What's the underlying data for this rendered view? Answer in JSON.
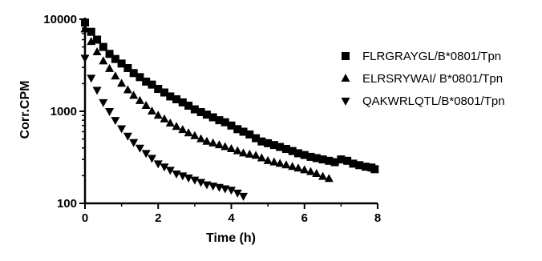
{
  "chart_data": {
    "type": "scatter",
    "xlabel": "Time (h)",
    "ylabel": "Corr.CPM",
    "xlim": [
      0,
      8
    ],
    "ylim": [
      100,
      10000
    ],
    "yscale": "log",
    "x_ticks": [
      "0",
      "2",
      "4",
      "6",
      "8"
    ],
    "y_ticks": [
      "100",
      "1000",
      "10000"
    ],
    "grid": false,
    "legend_position": "right",
    "series": [
      {
        "name": "FLRGRAYGL/B*0801/Tpn",
        "marker": "square",
        "color": "#000000",
        "x": [
          0,
          0.17,
          0.33,
          0.5,
          0.67,
          0.83,
          1.0,
          1.17,
          1.33,
          1.5,
          1.67,
          1.83,
          2.0,
          2.17,
          2.33,
          2.5,
          2.67,
          2.83,
          3.0,
          3.17,
          3.33,
          3.5,
          3.67,
          3.83,
          4.0,
          4.17,
          4.33,
          4.5,
          4.67,
          4.83,
          5.0,
          5.17,
          5.33,
          5.5,
          5.67,
          5.83,
          6.0,
          6.17,
          6.33,
          6.5,
          6.67,
          6.83,
          7.0,
          7.17,
          7.33,
          7.5,
          7.67,
          7.83,
          7.92
        ],
        "values": [
          9200,
          7300,
          6000,
          5000,
          4200,
          3700,
          3300,
          2950,
          2600,
          2350,
          2100,
          1950,
          1750,
          1600,
          1450,
          1350,
          1250,
          1150,
          1050,
          980,
          920,
          860,
          800,
          760,
          700,
          640,
          600,
          560,
          510,
          470,
          450,
          430,
          410,
          390,
          370,
          350,
          335,
          320,
          310,
          300,
          290,
          280,
          300,
          290,
          270,
          260,
          250,
          245,
          235
        ]
      },
      {
        "name": "ELRSRYWAI/ B*0801/Tpn",
        "marker": "triangle-up",
        "color": "#000000",
        "x": [
          0,
          0.17,
          0.33,
          0.5,
          0.67,
          0.83,
          1.0,
          1.17,
          1.33,
          1.5,
          1.67,
          1.83,
          2.0,
          2.17,
          2.33,
          2.5,
          2.67,
          2.83,
          3.0,
          3.17,
          3.33,
          3.5,
          3.67,
          3.83,
          4.0,
          4.17,
          4.33,
          4.5,
          4.67,
          4.83,
          5.0,
          5.17,
          5.33,
          5.5,
          5.67,
          5.83,
          6.0,
          6.17,
          6.33,
          6.5,
          6.67
        ],
        "values": [
          7800,
          5700,
          4400,
          3500,
          2900,
          2400,
          2000,
          1700,
          1480,
          1300,
          1150,
          1000,
          900,
          820,
          740,
          680,
          630,
          580,
          540,
          500,
          470,
          450,
          430,
          410,
          390,
          370,
          350,
          340,
          330,
          310,
          290,
          280,
          270,
          260,
          250,
          240,
          230,
          220,
          210,
          195,
          185
        ]
      },
      {
        "name": "QAKWRLQTL/B*0801/Tpn",
        "marker": "triangle-down",
        "color": "#000000",
        "x": [
          0,
          0.17,
          0.33,
          0.5,
          0.67,
          0.83,
          1.0,
          1.17,
          1.33,
          1.5,
          1.67,
          1.83,
          2.0,
          2.17,
          2.33,
          2.5,
          2.67,
          2.83,
          3.0,
          3.17,
          3.33,
          3.5,
          3.67,
          3.83,
          4.0,
          4.17,
          4.33
        ],
        "values": [
          3800,
          2300,
          1700,
          1250,
          1000,
          800,
          650,
          540,
          460,
          400,
          350,
          310,
          270,
          250,
          230,
          210,
          200,
          190,
          180,
          170,
          160,
          155,
          150,
          145,
          140,
          130,
          120
        ]
      }
    ]
  }
}
